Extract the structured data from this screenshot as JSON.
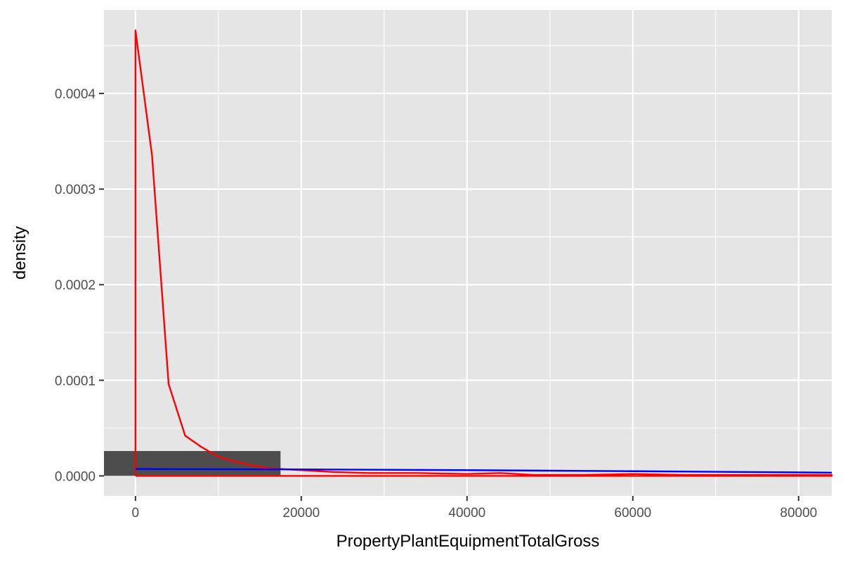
{
  "chart_data": {
    "type": "histogram",
    "xlabel": "PropertyPlantEquipmentTotalGross",
    "ylabel": "density",
    "xlim": [
      -3800,
      84000
    ],
    "ylim": [
      -2.1e-05,
      0.0004875
    ],
    "x_ticks": [
      0,
      20000,
      40000,
      60000,
      80000
    ],
    "x_tick_labels": [
      "0",
      "20000",
      "40000",
      "60000",
      "80000"
    ],
    "y_ticks": [
      0.0,
      0.0001,
      0.0002,
      0.0003,
      0.0004
    ],
    "y_tick_labels": [
      "0.0000",
      "0.0001",
      "0.0002",
      "0.0003",
      "0.0004"
    ],
    "grid": true,
    "histogram": {
      "color": "#4d4d4d",
      "bins": [
        {
          "x0": -3800,
          "x1": 17500,
          "density": 2.6e-05
        }
      ]
    },
    "series": [
      {
        "color": "#ff0000",
        "points": [
          [
            0,
            0
          ],
          [
            0,
            0.000466
          ],
          [
            2000,
            0.000335
          ],
          [
            4000,
            9.6e-05
          ],
          [
            6000,
            4.2e-05
          ],
          [
            8000,
            3e-05
          ],
          [
            10000,
            2e-05
          ],
          [
            12000,
            1.5e-05
          ],
          [
            14000,
            1.1e-05
          ],
          [
            16000,
            8e-06
          ],
          [
            18000,
            7e-06
          ],
          [
            20000,
            6e-06
          ],
          [
            24000,
            4e-06
          ],
          [
            28000,
            3e-06
          ],
          [
            34000,
            3e-06
          ],
          [
            40000,
            2e-06
          ],
          [
            44000,
            3e-06
          ],
          [
            48000,
            1e-06
          ],
          [
            54000,
            1e-06
          ],
          [
            60000,
            2e-06
          ],
          [
            66000,
            1e-06
          ],
          [
            72000,
            1e-06
          ],
          [
            84000,
            1e-06
          ],
          [
            84000,
            0.0
          ],
          [
            0,
            0.0
          ]
        ]
      },
      {
        "color": "#0000ff",
        "points": [
          [
            0,
            7.2e-06
          ],
          [
            20000,
            6.8e-06
          ],
          [
            40000,
            6e-06
          ],
          [
            60000,
            4.9e-06
          ],
          [
            84000,
            3.4e-06
          ]
        ]
      }
    ]
  }
}
